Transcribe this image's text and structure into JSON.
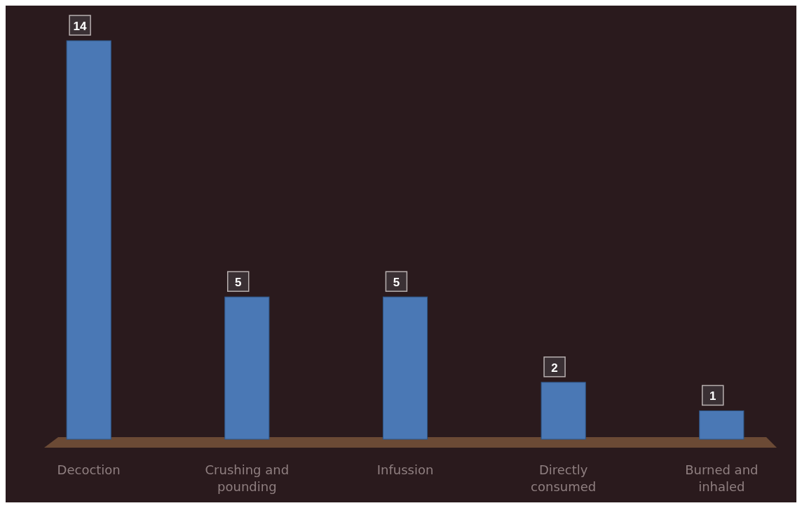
{
  "chart_data": {
    "type": "bar",
    "categories": [
      "Decoction",
      "Crushing and pounding",
      "Infussion",
      "Directly consumed",
      "Burned and inhaled"
    ],
    "values": [
      14,
      5,
      5,
      2,
      1
    ],
    "color": "#4a78b5",
    "data_labels": true
  }
}
